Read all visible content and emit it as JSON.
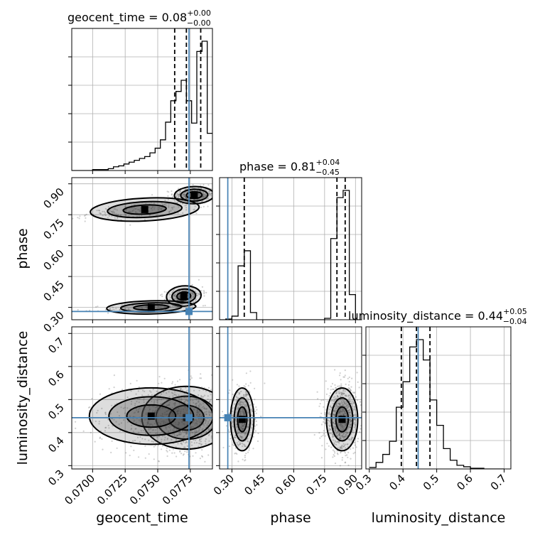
{
  "chart_data": {
    "type": "corner",
    "parameters": [
      {
        "name": "geocent_time",
        "label": "geocent_time",
        "range": [
          0.0684,
          0.0792
        ],
        "ticks": [
          "0.0700",
          "0.0725",
          "0.0750",
          "0.0775"
        ],
        "tick_values": [
          0.07,
          0.0725,
          0.075,
          0.0775
        ],
        "truth": 0.0774,
        "title": {
          "lead": "geocent_time = 0.08",
          "sup": "+0.00",
          "sub": "−0.00"
        },
        "quantiles": [
          0.0763,
          0.0772,
          0.0783
        ]
      },
      {
        "name": "phase",
        "label": "phase",
        "range": [
          0.24,
          0.93
        ],
        "ticks": [
          "0.30",
          "0.45",
          "0.60",
          "0.75",
          "0.90"
        ],
        "tick_values": [
          0.3,
          0.45,
          0.6,
          0.75,
          0.9
        ],
        "truth": 0.28,
        "title": {
          "lead": "phase = 0.81",
          "sup": "+0.04",
          "sub": "−0.45"
        },
        "quantiles": [
          0.36,
          0.81,
          0.85
        ]
      },
      {
        "name": "luminosity_distance",
        "label": "luminosity_distance",
        "range": [
          0.29,
          0.72
        ],
        "ticks": [
          "0.3",
          "0.4",
          "0.5",
          "0.6",
          "0.7"
        ],
        "tick_values": [
          0.3,
          0.4,
          0.5,
          0.6,
          0.7
        ],
        "truth": 0.445,
        "title": {
          "lead": "luminosity_distance = 0.44",
          "sup": "+0.05",
          "sub": "−0.04"
        },
        "quantiles": [
          0.395,
          0.44,
          0.48
        ]
      }
    ],
    "histograms": [
      {
        "param": "geocent_time",
        "bin_edges": [
          0.0684,
          0.07,
          0.0712,
          0.0716,
          0.072,
          0.0724,
          0.0728,
          0.0732,
          0.0736,
          0.074,
          0.0744,
          0.0748,
          0.0752,
          0.0756,
          0.076,
          0.0764,
          0.0768,
          0.0772,
          0.0776,
          0.078,
          0.0784,
          0.0788,
          0.0792
        ],
        "counts": [
          0,
          1,
          2,
          4,
          5,
          7,
          9,
          11,
          13,
          15,
          19,
          24,
          33,
          52,
          75,
          85,
          97,
          75,
          51,
          128,
          139,
          40
        ]
      },
      {
        "param": "phase",
        "bin_edges": [
          0.24,
          0.27,
          0.3,
          0.33,
          0.36,
          0.39,
          0.42,
          0.45,
          0.48,
          0.51,
          0.54,
          0.57,
          0.6,
          0.63,
          0.66,
          0.69,
          0.72,
          0.75,
          0.78,
          0.81,
          0.84,
          0.87,
          0.9,
          0.93
        ],
        "counts": [
          0,
          1,
          5,
          75,
          96,
          10,
          0,
          0,
          0,
          0,
          0,
          0,
          0,
          0,
          0,
          0,
          0,
          2,
          113,
          170,
          180,
          35,
          0
        ]
      },
      {
        "param": "luminosity_distance",
        "bin_edges": [
          0.3,
          0.32,
          0.34,
          0.36,
          0.38,
          0.4,
          0.42,
          0.44,
          0.46,
          0.48,
          0.5,
          0.52,
          0.54,
          0.56,
          0.58,
          0.6,
          0.62,
          0.64,
          0.66,
          0.68,
          0.7
        ],
        "counts": [
          2,
          9,
          20,
          38,
          85,
          120,
          168,
          178,
          150,
          95,
          60,
          28,
          12,
          5,
          3,
          1,
          1,
          0,
          0,
          0
        ]
      }
    ],
    "contour_panels": [
      {
        "x": "geocent_time",
        "y": "phase"
      },
      {
        "x": "geocent_time",
        "y": "luminosity_distance"
      },
      {
        "x": "phase",
        "y": "luminosity_distance"
      }
    ],
    "sample_blobs": [
      {
        "x": "geocent_time",
        "y": "phase",
        "blobs": [
          {
            "cx": 0.0778,
            "cy": 0.845,
            "sx": 0.0008,
            "sy": 0.02,
            "n": 420,
            "rot": 0.1
          },
          {
            "cx": 0.074,
            "cy": 0.775,
            "sx": 0.0022,
            "sy": 0.018,
            "n": 220,
            "rot": 0.62
          },
          {
            "cx": 0.077,
            "cy": 0.355,
            "sx": 0.0007,
            "sy": 0.02,
            "n": 260,
            "rot": 0.3
          },
          {
            "cx": 0.0745,
            "cy": 0.3,
            "sx": 0.0018,
            "sy": 0.012,
            "n": 110,
            "rot": 0.4
          }
        ]
      },
      {
        "x": "geocent_time",
        "y": "luminosity_distance",
        "blobs": [
          {
            "cx": 0.0772,
            "cy": 0.445,
            "sx": 0.0018,
            "sy": 0.05,
            "n": 900,
            "rot": 0.0
          },
          {
            "cx": 0.0745,
            "cy": 0.45,
            "sx": 0.0025,
            "sy": 0.045,
            "n": 280,
            "rot": 0.0
          }
        ]
      },
      {
        "x": "phase",
        "y": "luminosity_distance",
        "blobs": [
          {
            "cx": 0.35,
            "cy": 0.44,
            "sx": 0.03,
            "sy": 0.05,
            "n": 420,
            "rot": 0.0
          },
          {
            "cx": 0.835,
            "cy": 0.44,
            "sx": 0.04,
            "sy": 0.05,
            "n": 800,
            "rot": 0.0
          }
        ]
      }
    ],
    "grid": true
  },
  "colors": {
    "truth": "#4682b4",
    "contour": "#000000",
    "samples": "#555555",
    "grid": "#b0b0b0"
  }
}
